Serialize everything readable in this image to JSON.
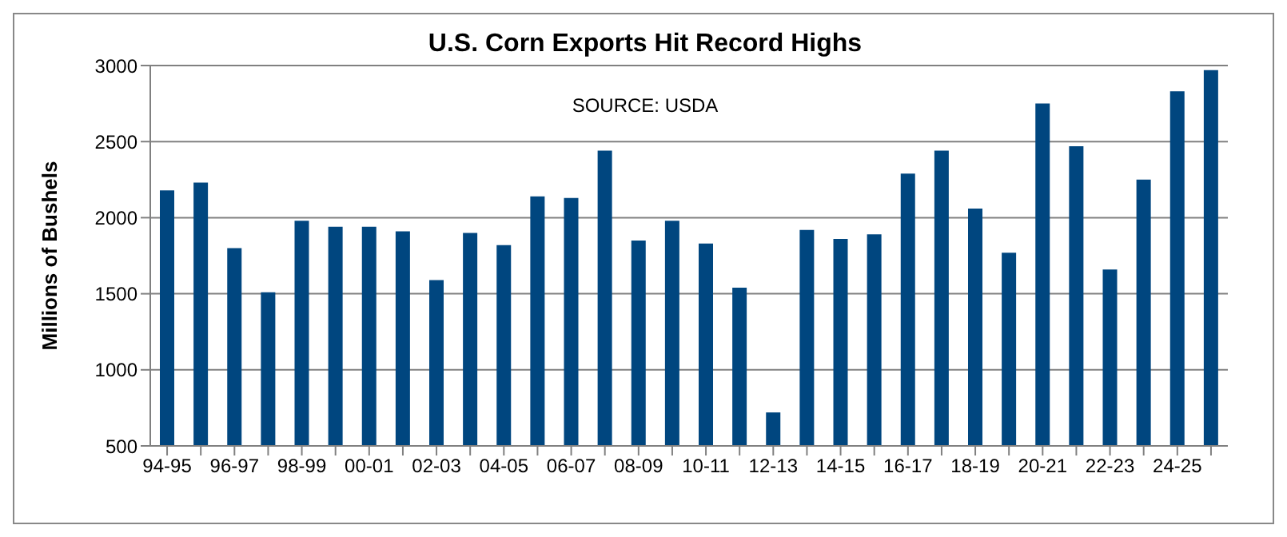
{
  "chart_data": {
    "type": "bar",
    "title": "U.S. Corn Exports Hit Record Highs",
    "ylabel": "Millions of Bushels",
    "annotations": [
      "SOURCE: USDA"
    ],
    "categories": [
      "94-95",
      null,
      "96-97",
      null,
      "98-99",
      null,
      "00-01",
      null,
      "02-03",
      null,
      "04-05",
      null,
      "06-07",
      null,
      "08-09",
      null,
      "10-11",
      null,
      "12-13",
      null,
      "14-15",
      null,
      "16-17",
      null,
      "18-19",
      null,
      "20-21",
      null,
      "22-23",
      null,
      "24-25",
      null
    ],
    "values": [
      2180,
      2230,
      1800,
      1510,
      1980,
      1940,
      1940,
      1910,
      1590,
      1900,
      1820,
      2140,
      2130,
      2440,
      1850,
      1980,
      1830,
      1540,
      720,
      1920,
      1860,
      1890,
      2290,
      2440,
      2060,
      1770,
      2750,
      2470,
      1660,
      2250,
      2830,
      2970
    ],
    "color": "#00467f",
    "ylim": [
      500,
      3000
    ],
    "yticks": [
      500,
      1000,
      1500,
      2000,
      2500,
      3000
    ],
    "grid": "y"
  }
}
